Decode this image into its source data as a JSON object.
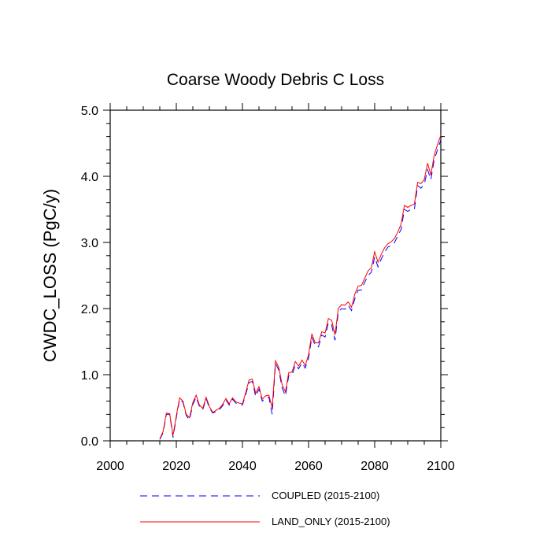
{
  "chart_data": {
    "type": "line",
    "title": "Coarse Woody Debris C Loss",
    "xlabel": "",
    "ylabel": "CWDC_LOSS  (PgC/y)",
    "xlim": [
      2000,
      2100
    ],
    "ylim": [
      0.0,
      5.0
    ],
    "xticks": [
      "2000",
      "2020",
      "2040",
      "2060",
      "2080",
      "2100"
    ],
    "yticks": [
      "0.0",
      "1.0",
      "2.0",
      "3.0",
      "4.0",
      "5.0"
    ],
    "grid": false,
    "legend_position": "bottom",
    "x": [
      2015,
      2016,
      2017,
      2018,
      2019,
      2020,
      2021,
      2022,
      2023,
      2024,
      2025,
      2026,
      2027,
      2028,
      2029,
      2030,
      2031,
      2032,
      2033,
      2034,
      2035,
      2036,
      2037,
      2038,
      2039,
      2040,
      2041,
      2042,
      2043,
      2044,
      2045,
      2046,
      2047,
      2048,
      2049,
      2050,
      2051,
      2052,
      2053,
      2054,
      2055,
      2056,
      2057,
      2058,
      2059,
      2060,
      2061,
      2062,
      2063,
      2064,
      2065,
      2066,
      2067,
      2068,
      2069,
      2070,
      2071,
      2072,
      2073,
      2074,
      2075,
      2076,
      2077,
      2078,
      2079,
      2080,
      2081,
      2082,
      2083,
      2084,
      2085,
      2086,
      2087,
      2088,
      2089,
      2090,
      2091,
      2092,
      2093,
      2094,
      2095,
      2096,
      2097,
      2098,
      2099,
      2100
    ],
    "series": [
      {
        "name": "COUPLED (2015-2100)",
        "color": "#0000ff",
        "dash": "dashed",
        "values": [
          0.02,
          0.12,
          0.4,
          0.4,
          0.05,
          0.35,
          0.63,
          0.58,
          0.38,
          0.32,
          0.55,
          0.66,
          0.52,
          0.47,
          0.64,
          0.5,
          0.42,
          0.44,
          0.47,
          0.53,
          0.62,
          0.54,
          0.63,
          0.57,
          0.55,
          0.54,
          0.7,
          0.88,
          0.9,
          0.67,
          0.78,
          0.6,
          0.65,
          0.66,
          0.4,
          1.17,
          1.07,
          0.8,
          0.68,
          0.98,
          0.99,
          1.15,
          1.09,
          1.18,
          1.1,
          1.25,
          1.57,
          1.44,
          1.42,
          1.6,
          1.57,
          1.79,
          1.75,
          1.52,
          1.95,
          2.0,
          1.99,
          2.05,
          1.97,
          2.15,
          2.28,
          2.28,
          2.4,
          2.5,
          2.55,
          2.78,
          2.63,
          2.75,
          2.85,
          2.93,
          2.95,
          3.0,
          3.1,
          3.2,
          3.5,
          3.47,
          3.5,
          3.5,
          3.86,
          3.82,
          3.88,
          4.1,
          3.95,
          4.25,
          4.4,
          4.55
        ]
      },
      {
        "name": "LAND_ONLY (2015-2100)",
        "color": "#ff0000",
        "dash": "solid",
        "values": [
          0.03,
          0.14,
          0.42,
          0.41,
          0.08,
          0.38,
          0.65,
          0.6,
          0.4,
          0.35,
          0.58,
          0.69,
          0.54,
          0.49,
          0.66,
          0.52,
          0.43,
          0.46,
          0.49,
          0.55,
          0.64,
          0.56,
          0.65,
          0.59,
          0.57,
          0.56,
          0.73,
          0.92,
          0.93,
          0.72,
          0.82,
          0.63,
          0.68,
          0.69,
          0.5,
          1.21,
          1.11,
          0.85,
          0.74,
          1.03,
          1.04,
          1.2,
          1.13,
          1.22,
          1.14,
          1.3,
          1.62,
          1.48,
          1.48,
          1.65,
          1.63,
          1.85,
          1.82,
          1.6,
          2.0,
          2.06,
          2.05,
          2.1,
          2.02,
          2.22,
          2.34,
          2.35,
          2.46,
          2.57,
          2.62,
          2.86,
          2.7,
          2.82,
          2.92,
          2.98,
          3.01,
          3.06,
          3.16,
          3.28,
          3.56,
          3.53,
          3.56,
          3.58,
          3.91,
          3.89,
          3.95,
          4.2,
          4.02,
          4.32,
          4.48,
          4.62
        ]
      }
    ]
  }
}
